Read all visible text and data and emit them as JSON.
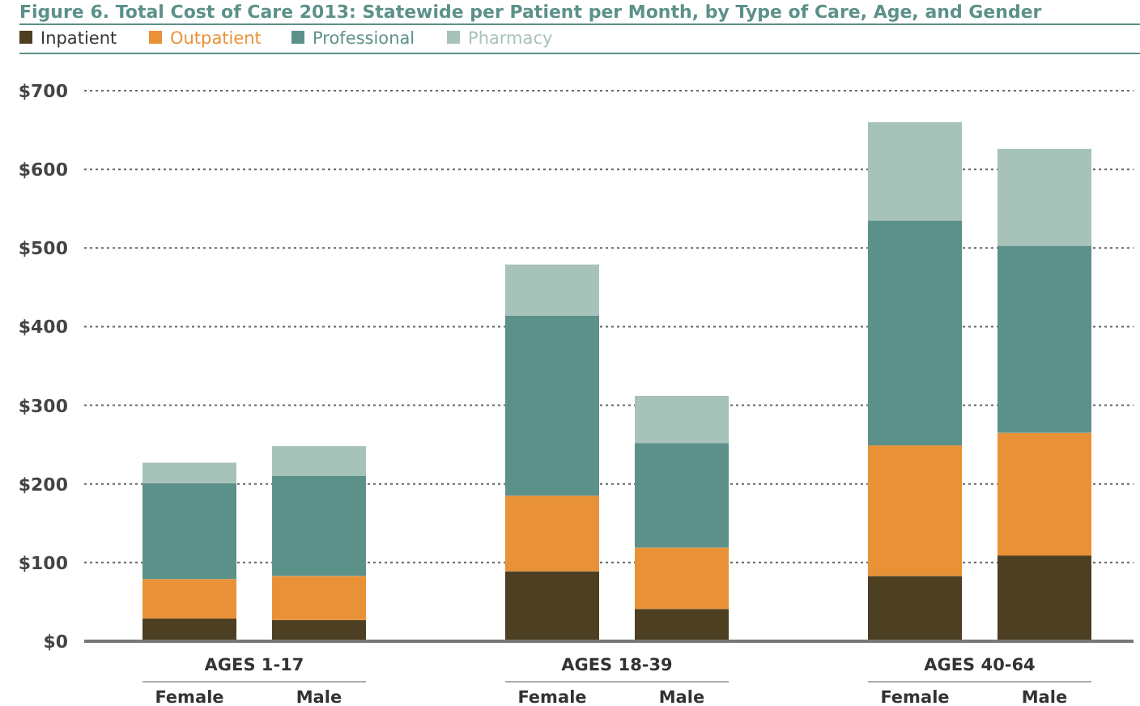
{
  "chart_data": {
    "type": "bar",
    "title": "Figure 6. Total Cost of Care 2013: Statewide per Patient per Month, by Type of Care, Age, and Gender",
    "categories": [
      "Female",
      "Male",
      "Female",
      "Male",
      "Female",
      "Male"
    ],
    "annotations": [
      "AGES 1-17",
      "AGES 18-39",
      "AGES 40-64"
    ],
    "stacked": true,
    "legend": "top left",
    "grid": "y",
    "ylim": [
      0,
      700
    ],
    "yticks": [
      {
        "value": 0,
        "label": "$0"
      },
      {
        "value": 100,
        "label": "$100"
      },
      {
        "value": 200,
        "label": "$200"
      },
      {
        "value": 300,
        "label": "$300"
      },
      {
        "value": 400,
        "label": "$400"
      },
      {
        "value": 500,
        "label": "$500"
      },
      {
        "value": 600,
        "label": "$600"
      },
      {
        "value": 700,
        "label": "$700"
      }
    ],
    "series": [
      {
        "name": "Inpatient",
        "color": "#4d3f22",
        "values": [
          29,
          27,
          89,
          41,
          83,
          109
        ]
      },
      {
        "name": "Outpatient",
        "color": "#e99136",
        "values": [
          50,
          56,
          96,
          78,
          166,
          156
        ]
      },
      {
        "name": "Professional",
        "color": "#5b9189",
        "values": [
          122,
          127,
          229,
          133,
          286,
          238
        ]
      },
      {
        "name": "Pharmacy",
        "color": "#a7c2b8",
        "values": [
          26,
          38,
          65,
          60,
          125,
          123
        ]
      }
    ]
  }
}
